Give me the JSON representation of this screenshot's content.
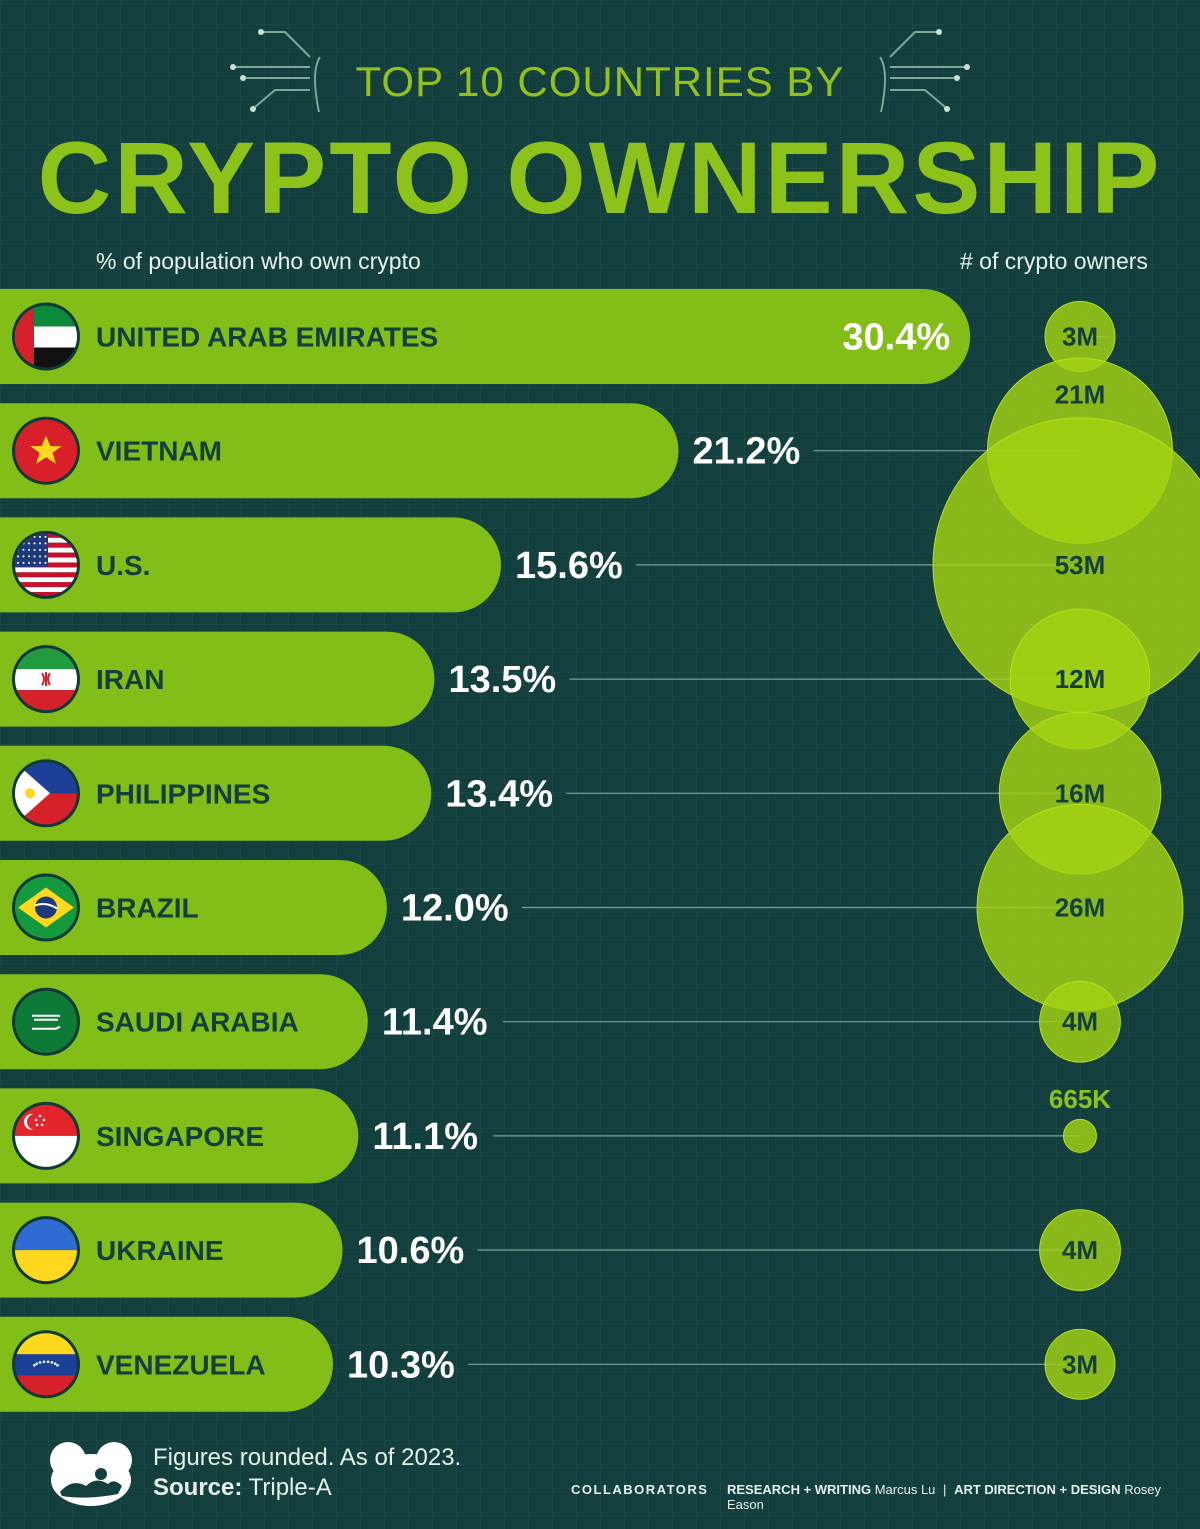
{
  "title_line1": "TOP 10 COUNTRIES BY",
  "title_line2": "CRYPTO OWNERSHIP",
  "left_header": "% of population who own crypto",
  "right_header": "# of crypto owners",
  "colors": {
    "background": "#13403e",
    "bar": "#83bd17",
    "bubble": "#a3d312",
    "title": "#8dc21b",
    "dark_text": "#13403e"
  },
  "chart_data": {
    "type": "bar",
    "orientation": "horizontal",
    "categories": [
      "UNITED ARAB EMIRATES",
      "VIETNAM",
      "U.S.",
      "IRAN",
      "PHILIPPINES",
      "BRAZIL",
      "SAUDI ARABIA",
      "SINGAPORE",
      "UKRAINE",
      "VENEZUELA"
    ],
    "series": [
      {
        "name": "% of population who own crypto",
        "values": [
          30.4,
          21.2,
          15.6,
          13.5,
          13.4,
          12.0,
          11.4,
          11.1,
          10.6,
          10.3
        ],
        "labels": [
          "30.4%",
          "21.2%",
          "15.6%",
          "13.5%",
          "13.4%",
          "12.0%",
          "11.4%",
          "11.1%",
          "10.6%",
          "10.3%"
        ]
      },
      {
        "name": "# of crypto owners",
        "values": [
          3000000,
          21000000,
          53000000,
          12000000,
          16000000,
          26000000,
          4000000,
          665000,
          4000000,
          3000000
        ],
        "labels": [
          "3M",
          "21M",
          "53M",
          "12M",
          "16M",
          "26M",
          "4M",
          "665K",
          "4M",
          "3M"
        ]
      }
    ],
    "flag_icons": [
      "uae-flag-icon",
      "vietnam-flag-icon",
      "us-flag-icon",
      "iran-flag-icon",
      "philippines-flag-icon",
      "brazil-flag-icon",
      "saudi-arabia-flag-icon",
      "singapore-flag-icon",
      "ukraine-flag-icon",
      "venezuela-flag-icon"
    ]
  },
  "footer": {
    "note": "Figures rounded. As of 2023.",
    "source_label": "Source:",
    "source_value": "Triple-A",
    "collaborators_label": "COLLABORATORS",
    "research_label": "RESEARCH + WRITING",
    "research_name": "Marcus Lu",
    "separator": "|",
    "design_label": "ART DIRECTION + DESIGN",
    "design_name": "Rosey Eason"
  }
}
